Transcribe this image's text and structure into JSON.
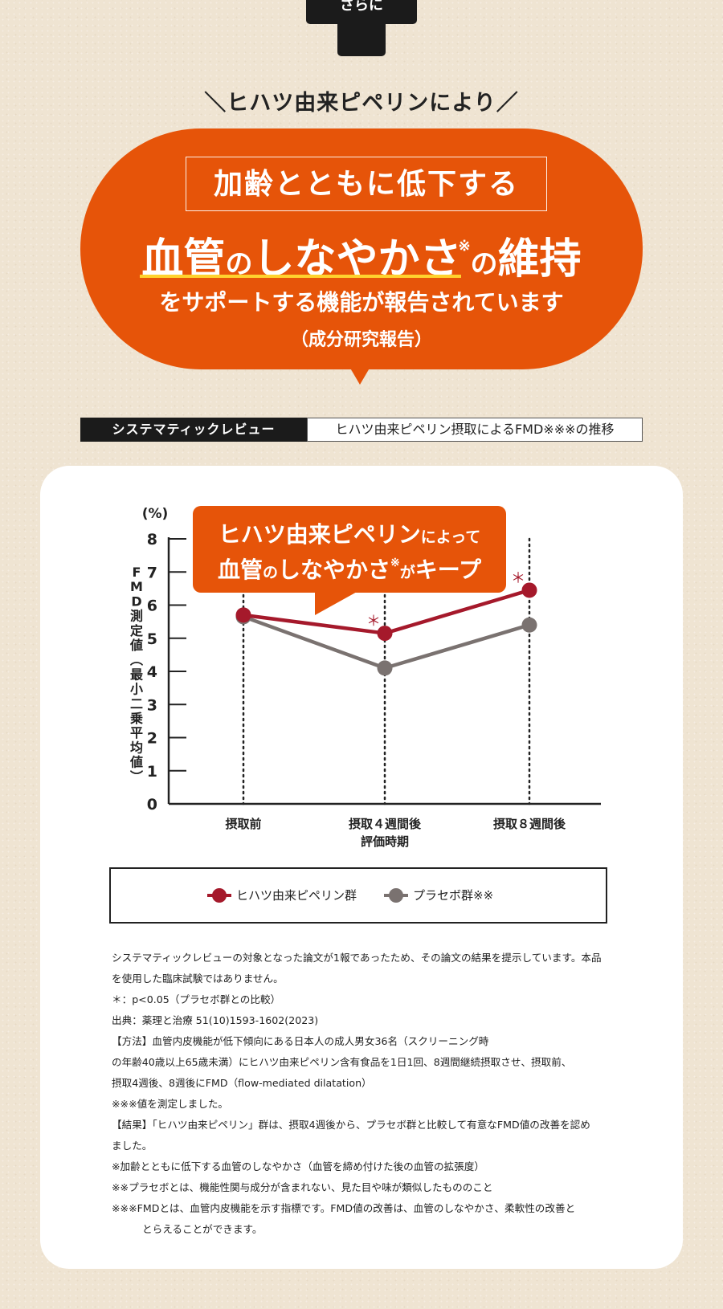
{
  "top_tab": {
    "label": "さらに"
  },
  "subtitle": "＼ヒハツ由来ピペリンにより／",
  "bubble": {
    "boxed_line": "加齢とともに低下する",
    "headline_a": "血管",
    "headline_b": "の",
    "headline_c": "しなやかさ",
    "headline_mark": "※",
    "headline_d": "の",
    "headline_e": "維持",
    "support": "をサポートする機能が報告されています",
    "report_note": "（成分研究報告）"
  },
  "review": {
    "label": "システマティックレビュー",
    "description": "ヒハツ由来ピペリン摂取によるFMD※※※の推移"
  },
  "callout": {
    "l1_a": "ヒハツ由来ピペリン",
    "l1_b": "によって",
    "l2_a": "血管",
    "l2_b": "の",
    "l2_c": "しなやかさ",
    "l2_mark": "※",
    "l2_d": "が",
    "l2_e": "キープ"
  },
  "chart_data": {
    "type": "line",
    "categories": [
      "摂取前",
      "摂取４週間後",
      "摂取８週間後"
    ],
    "x_group_label": "評価時期",
    "ylabel": "FMD測定値（最小二乗平均値）",
    "yunit": "(%)",
    "ylim": [
      0,
      8
    ],
    "yticks": [
      0,
      1,
      2,
      3,
      4,
      5,
      6,
      7,
      8
    ],
    "grid": false,
    "vertical_guides": "dotted",
    "significance_mark": "＊",
    "significant_points": [
      1,
      2
    ],
    "series": [
      {
        "name": "ヒハツ由来ピペリン群",
        "values": [
          5.7,
          5.15,
          6.45
        ],
        "color": "#a5192b"
      },
      {
        "name": "プラセボ群※※",
        "values": [
          5.65,
          4.1,
          5.4
        ],
        "color": "#7a7270"
      }
    ]
  },
  "notes": [
    "システマティックレビューの対象となった論文が1報であったため、その論文の結果を提示しています。本品",
    "を使用した臨床試験ではありません。",
    "＊：p<0.05（プラセボ群との比較）",
    "出典：薬理と治療 51(10)1593-1602(2023)",
    "【方法】血管内皮機能が低下傾向にある日本人の成人男女36名（スクリーニング時",
    "の年齢40歳以上65歳未満）にヒハツ由来ピペリン含有食品を1日1回、8週間継続摂取させ、摂取前、",
    "摂取4週後、8週後にFMD（flow-mediated dilatation）",
    "※※※値を測定しました。",
    "【結果】「ヒハツ由来ピペリン」群は、摂取4週後から、プラセボ群と比較して有意なFMD値の改善を認め",
    "ました。",
    "※加齢とともに低下する血管のしなやかさ（血管を締め付けた後の血管の拡張度）",
    "※※プラセボとは、機能性関与成分が含まれない、見た目や味が類似したもののこと",
    "※※※FMDとは、血管内皮機能を示す指標です。FMD値の改善は、血管のしなやかさ、柔軟性の改善と",
    "とらえることができます。"
  ],
  "colors": {
    "accent": "#e65409",
    "highlight": "#ffd22e",
    "piperine": "#a5192b",
    "placebo": "#7a7270"
  }
}
